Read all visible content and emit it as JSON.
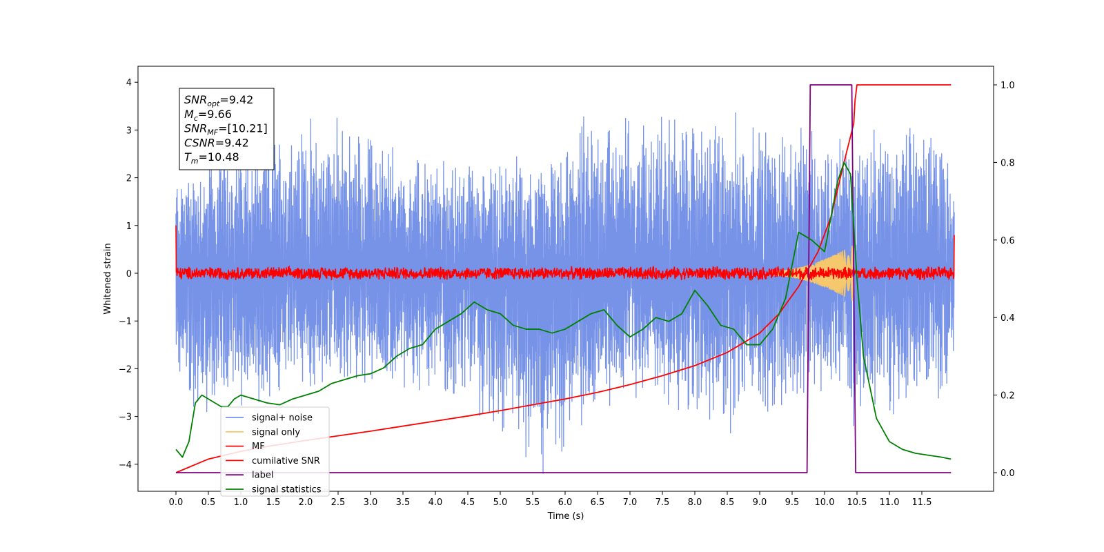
{
  "chart_data": {
    "type": "line",
    "xlabel": "Time (s)",
    "ylabel": "Whitened strain",
    "xlim": [
      -0.6,
      12.6
    ],
    "ylim": [
      -4.45,
      4.3
    ],
    "ylim_right": [
      -0.05,
      1.05
    ],
    "x_ticks": [
      0.0,
      0.5,
      1.0,
      1.5,
      2.0,
      2.5,
      3.0,
      3.5,
      4.0,
      4.5,
      5.0,
      5.5,
      6.0,
      6.5,
      7.0,
      7.5,
      8.0,
      8.5,
      9.0,
      9.5,
      10.0,
      10.5,
      11.0,
      11.5
    ],
    "x_tick_labels": [
      "0.0",
      "0.5",
      "1.0",
      "1.5",
      "2.0",
      "2.5",
      "3.0",
      "3.5",
      "4.0",
      "4.5",
      "5.0",
      "5.5",
      "6.0",
      "6.5",
      "7.0",
      "7.5",
      "8.0",
      "8.5",
      "9.0",
      "9.5",
      "10.0",
      "10.5",
      "11.0",
      "11.5"
    ],
    "y_ticks": [
      4,
      3,
      2,
      1,
      0,
      -1,
      -2,
      -3,
      -4
    ],
    "y_tick_labels": [
      "4",
      "3",
      "2",
      "1",
      "0",
      "−1",
      "−2",
      "−3",
      "−4"
    ],
    "y_ticks_right": [
      1.0,
      0.8,
      0.6,
      0.4,
      0.2,
      0.0
    ],
    "y_tick_labels_right": [
      "1.0",
      "0.8",
      "0.6",
      "0.4",
      "0.2",
      "0.0"
    ],
    "grid": false,
    "legend_position": "lower-left",
    "annotation": {
      "lines": [
        {
          "main": "SNR",
          "sub": "opt",
          "rest": "=9.42"
        },
        {
          "main": "M",
          "sub": "c",
          "rest": "=9.66"
        },
        {
          "main": "SNR",
          "sub": "MF",
          "rest": "=[10.21]"
        },
        {
          "main": "CSNR",
          "sub": "",
          "rest": "=9.42"
        },
        {
          "main": "T",
          "sub": "m",
          "rest": "=10.48"
        }
      ]
    },
    "series": [
      {
        "name": "signal+ noise",
        "axis": "left",
        "color": "#7793e8",
        "style": "noise",
        "x_range": [
          0.0,
          12.0
        ],
        "envelope_upper": [
          [
            0.0,
            2.3
          ],
          [
            1.6,
            3.3
          ],
          [
            2.5,
            3.4
          ],
          [
            4.0,
            2.5
          ],
          [
            6.0,
            2.6
          ],
          [
            6.3,
            3.5
          ],
          [
            8.4,
            3.6
          ],
          [
            10.0,
            3.0
          ],
          [
            11.8,
            3.5
          ],
          [
            12.0,
            2.0
          ]
        ],
        "envelope_lower": [
          [
            0.0,
            -1.9
          ],
          [
            0.2,
            -3.2
          ],
          [
            2.5,
            -2.5
          ],
          [
            4.0,
            -2.6
          ],
          [
            5.66,
            -4.2
          ],
          [
            7.0,
            -2.8
          ],
          [
            8.55,
            -3.35
          ],
          [
            10.0,
            -3.0
          ],
          [
            11.8,
            -3.1
          ],
          [
            12.0,
            -2.0
          ]
        ],
        "spikes": [
          [
            5.66,
            -4.2
          ],
          [
            8.55,
            -3.35
          ],
          [
            10.45,
            -3.2
          ]
        ]
      },
      {
        "name": "signal only",
        "axis": "left",
        "color": "#f5c86e",
        "style": "chirp",
        "x_range": [
          9.2,
          10.45
        ],
        "amplitude_start": 0.05,
        "amplitude_peak": 0.6
      },
      {
        "name": "MF",
        "axis": "left",
        "color": "#ff0000",
        "style": "noise",
        "x_range": [
          0.0,
          12.0
        ],
        "amplitude": 0.15,
        "endpoints": [
          [
            0.0,
            1.0
          ],
          [
            12.0,
            0.8
          ]
        ]
      },
      {
        "name": "cumilative SNR",
        "axis": "right",
        "color": "#ff0000",
        "x": [
          0.0,
          0.5,
          1.0,
          1.5,
          2.0,
          2.5,
          3.0,
          3.5,
          4.0,
          4.5,
          5.0,
          5.5,
          6.0,
          6.5,
          7.0,
          7.5,
          8.0,
          8.5,
          9.0,
          9.3,
          9.6,
          9.9,
          10.1,
          10.3,
          10.45,
          10.47,
          10.5,
          11.0,
          11.5,
          11.95
        ],
        "values": [
          0.0,
          0.035,
          0.055,
          0.07,
          0.083,
          0.095,
          0.107,
          0.12,
          0.133,
          0.146,
          0.16,
          0.175,
          0.19,
          0.207,
          0.227,
          0.25,
          0.276,
          0.31,
          0.36,
          0.41,
          0.48,
          0.57,
          0.66,
          0.8,
          0.9,
          0.96,
          1.0,
          1.0,
          1.0,
          1.0
        ]
      },
      {
        "name": "label",
        "axis": "right",
        "color": "#800080",
        "x": [
          0.0,
          9.73,
          9.78,
          10.42,
          10.48,
          11.95
        ],
        "values": [
          0.0,
          0.0,
          1.0,
          1.0,
          0.0,
          0.0
        ]
      },
      {
        "name": "signal statistics",
        "axis": "right",
        "color": "#008000",
        "x": [
          0.0,
          0.1,
          0.2,
          0.3,
          0.4,
          0.5,
          0.6,
          0.7,
          0.8,
          0.9,
          1.0,
          1.2,
          1.4,
          1.6,
          1.8,
          2.0,
          2.2,
          2.4,
          2.6,
          2.8,
          3.0,
          3.2,
          3.4,
          3.6,
          3.8,
          4.0,
          4.2,
          4.4,
          4.6,
          4.8,
          5.0,
          5.2,
          5.4,
          5.6,
          5.8,
          6.0,
          6.2,
          6.4,
          6.6,
          6.8,
          7.0,
          7.2,
          7.4,
          7.6,
          7.8,
          8.0,
          8.2,
          8.4,
          8.6,
          8.8,
          9.0,
          9.2,
          9.4,
          9.6,
          9.8,
          10.0,
          10.2,
          10.3,
          10.4,
          10.5,
          10.6,
          10.8,
          11.0,
          11.2,
          11.4,
          11.6,
          11.8,
          11.95
        ],
        "values": [
          0.06,
          0.04,
          0.08,
          0.18,
          0.2,
          0.19,
          0.18,
          0.17,
          0.17,
          0.19,
          0.2,
          0.19,
          0.18,
          0.175,
          0.19,
          0.2,
          0.21,
          0.23,
          0.24,
          0.25,
          0.255,
          0.27,
          0.3,
          0.32,
          0.33,
          0.37,
          0.39,
          0.41,
          0.44,
          0.42,
          0.41,
          0.38,
          0.37,
          0.37,
          0.36,
          0.37,
          0.39,
          0.41,
          0.42,
          0.38,
          0.35,
          0.37,
          0.4,
          0.39,
          0.41,
          0.47,
          0.43,
          0.38,
          0.37,
          0.33,
          0.33,
          0.37,
          0.45,
          0.62,
          0.6,
          0.57,
          0.75,
          0.8,
          0.77,
          0.5,
          0.3,
          0.14,
          0.08,
          0.06,
          0.05,
          0.045,
          0.04,
          0.035
        ]
      }
    ]
  }
}
